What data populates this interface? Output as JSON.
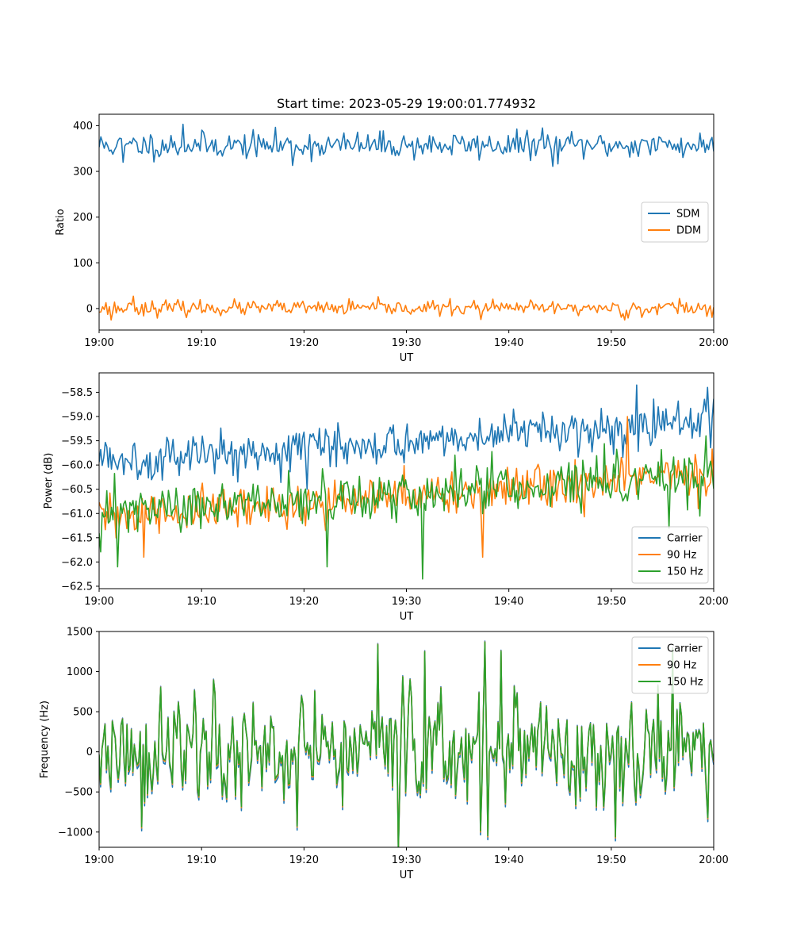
{
  "figure": {
    "title": "Start time: 2023-05-29 19:00:01.774932"
  },
  "chart_data": [
    {
      "type": "line",
      "name": "ratio-panel",
      "xlabel": "UT",
      "ylabel": "Ratio",
      "xlim": [
        "19:00",
        "20:00"
      ],
      "ylim": [
        -47,
        425
      ],
      "x_ticks": [
        "19:00",
        "19:10",
        "19:20",
        "19:30",
        "19:40",
        "19:50",
        "20:00"
      ],
      "y_ticks": [
        "0",
        "100",
        "200",
        "300",
        "400"
      ],
      "y_tick_values": [
        0,
        100,
        200,
        300,
        400
      ],
      "legend_position": "center-right",
      "n_points": 360,
      "series": [
        {
          "name": "SDM",
          "color": "#1f77b4",
          "mean": 357,
          "noise": 16,
          "drift": 0,
          "seed": 11,
          "peaks": [
            [
              8.2,
              403
            ],
            [
              43.3,
              395
            ],
            [
              18.9,
              313
            ],
            [
              44.3,
              311
            ],
            [
              2.4,
              320
            ]
          ]
        },
        {
          "name": "DDM",
          "color": "#ff7f0e",
          "mean": 1,
          "noise": 9,
          "drift": 0,
          "seed": 23,
          "peaks": [
            [
              3.4,
              27
            ],
            [
              1.2,
              -25
            ],
            [
              37.3,
              -24
            ],
            [
              51.3,
              -25
            ],
            [
              56.6,
              22
            ]
          ]
        }
      ]
    },
    {
      "type": "line",
      "name": "power-panel",
      "xlabel": "UT",
      "ylabel": "Power (dB)",
      "xlim": [
        "19:00",
        "20:00"
      ],
      "ylim": [
        -62.55,
        -58.1
      ],
      "x_ticks": [
        "19:00",
        "19:10",
        "19:20",
        "19:30",
        "19:40",
        "19:50",
        "20:00"
      ],
      "y_ticks": [
        "−62.5",
        "−62.0",
        "−61.5",
        "−61.0",
        "−60.5",
        "−60.0",
        "−59.5",
        "−59.0",
        "−58.5"
      ],
      "y_tick_values": [
        -62.5,
        -62.0,
        -61.5,
        -61.0,
        -60.5,
        -60.0,
        -59.5,
        -59.0,
        -58.5
      ],
      "legend_position": "lower-right",
      "n_points": 400,
      "series": [
        {
          "name": "Carrier",
          "color": "#1f77b4",
          "start": -59.9,
          "end": -59.1,
          "noise": 0.24,
          "seed": 5,
          "peaks": [
            [
              52.5,
              -58.35
            ],
            [
              59.4,
              -58.4
            ],
            [
              39.6,
              -58.95
            ],
            [
              20.3,
              -60.5
            ]
          ]
        },
        {
          "name": "90 Hz",
          "color": "#ff7f0e",
          "start": -61.1,
          "end": -60.2,
          "noise": 0.26,
          "seed": 31,
          "peaks": [
            [
              51.6,
              -59.0
            ],
            [
              4.3,
              -61.9
            ],
            [
              37.5,
              -61.9
            ],
            [
              58.5,
              -60.9
            ]
          ]
        },
        {
          "name": "150 Hz",
          "color": "#2ca02c",
          "start": -61.0,
          "end": -60.2,
          "noise": 0.28,
          "seed": 47,
          "peaks": [
            [
              31.6,
              -62.35
            ],
            [
              1.8,
              -62.1
            ],
            [
              22.3,
              -62.1
            ],
            [
              59.2,
              -59.4
            ],
            [
              55.7,
              -61.3
            ]
          ]
        }
      ]
    },
    {
      "type": "line",
      "name": "frequency-panel",
      "xlabel": "UT",
      "ylabel": "Frequency (Hz)",
      "xlim": [
        "19:00",
        "20:00"
      ],
      "ylim": [
        -1190,
        1500
      ],
      "x_ticks": [
        "19:00",
        "19:10",
        "19:20",
        "19:30",
        "19:40",
        "19:50",
        "20:00"
      ],
      "y_ticks": [
        "−1000",
        "−500",
        "0",
        "500",
        "1000",
        "1500"
      ],
      "y_tick_values": [
        -1000,
        -500,
        0,
        500,
        1000,
        1500
      ],
      "legend_position": "upper-right",
      "n_points": 420,
      "base_seed": 77,
      "base_noise": 360,
      "peaks": [
        [
          37.6,
          1370
        ],
        [
          27.2,
          1340
        ],
        [
          31.8,
          1250
        ],
        [
          56.0,
          1290
        ],
        [
          38.0,
          -1060
        ],
        [
          37.3,
          -1000
        ],
        [
          4.2,
          -950
        ],
        [
          19.4,
          -940
        ]
      ],
      "series": [
        {
          "name": "Carrier",
          "color": "#1f77b4",
          "offset": -35
        },
        {
          "name": "90 Hz",
          "color": "#ff7f0e",
          "offset": 0
        },
        {
          "name": "150 Hz",
          "color": "#2ca02c",
          "offset": 15
        }
      ]
    }
  ]
}
